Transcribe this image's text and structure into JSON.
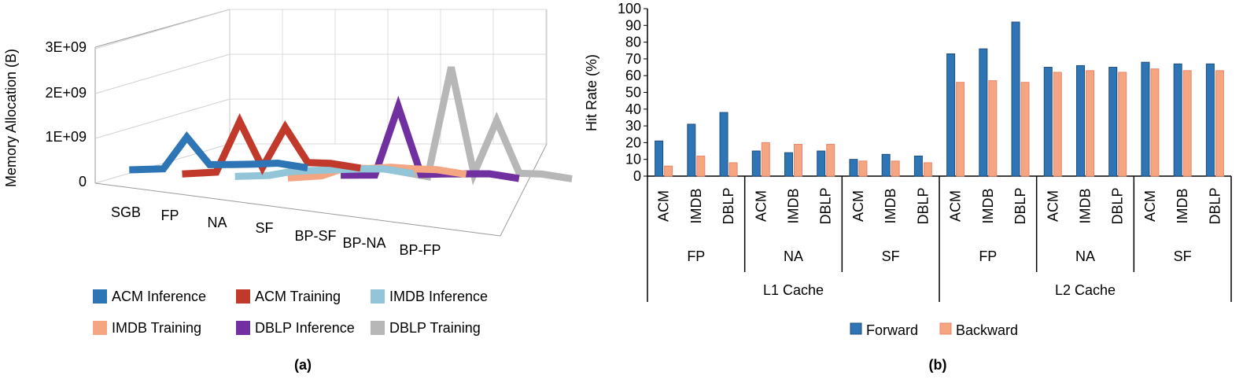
{
  "panels": {
    "left_caption": "(a)",
    "right_caption": "(b)"
  },
  "chart_data": [
    {
      "type": "line",
      "subtype": "3d-line",
      "title": "",
      "xlabel": "",
      "ylabel": "Memory Allocation (B)",
      "categories": [
        "SGB",
        "FP",
        "NA",
        "SF",
        "BP-SF",
        "BP-NA",
        "BP-FP"
      ],
      "y_tick_labels": [
        "0",
        "1E+09",
        "2E+09",
        "3E+09"
      ],
      "ylim": [
        0,
        3000000000
      ],
      "grid": true,
      "legend_position": "bottom",
      "series": [
        {
          "name": "ACM Inference",
          "color": "#2e75b6",
          "values": [
            80000000,
            50000000,
            750000000,
            80000000,
            50000000,
            30000000,
            20000000
          ]
        },
        {
          "name": "ACM Training",
          "color": "#c0392b",
          "values": [
            70000000,
            60000000,
            1200000000,
            100000000,
            1000000000,
            150000000,
            100000000
          ]
        },
        {
          "name": "IMDB Inference",
          "color": "#92c5d7",
          "values": [
            100000000,
            70000000,
            130000000,
            120000000,
            110000000,
            90000000,
            60000000
          ]
        },
        {
          "name": "IMDB Training",
          "color": "#f4a582",
          "values": [
            150000000,
            150000000,
            300000000,
            250000000,
            250000000,
            180000000,
            130000000
          ]
        },
        {
          "name": "DBLP Inference",
          "color": "#7030a0",
          "values": [
            300000000,
            250000000,
            1800000000,
            200000000,
            180000000,
            150000000,
            120000000
          ]
        },
        {
          "name": "DBLP Training",
          "color": "#b7b7b7",
          "values": [
            500000000,
            300000000,
            2800000000,
            300000000,
            1500000000,
            250000000,
            200000000
          ]
        }
      ]
    },
    {
      "type": "bar",
      "title": "",
      "xlabel": "",
      "ylabel": "Hit Rate (%)",
      "ylim": [
        0,
        100
      ],
      "y_ticks": [
        0,
        10,
        20,
        30,
        40,
        50,
        60,
        70,
        80,
        90,
        100
      ],
      "grid": false,
      "legend_position": "bottom",
      "categories": [
        "ACM",
        "IMDB",
        "DBLP",
        "ACM",
        "IMDB",
        "DBLP",
        "ACM",
        "IMDB",
        "DBLP",
        "ACM",
        "IMDB",
        "DBLP",
        "ACM",
        "IMDB",
        "DBLP",
        "ACM",
        "IMDB",
        "DBLP"
      ],
      "subgroups": [
        "FP",
        "NA",
        "SF",
        "FP",
        "NA",
        "SF"
      ],
      "groups": [
        "L1 Cache",
        "L2 Cache"
      ],
      "series": [
        {
          "name": "Forward",
          "color": "#2e75b6",
          "values": [
            21,
            31,
            38,
            15,
            14,
            15,
            10,
            13,
            12,
            73,
            76,
            92,
            65,
            66,
            65,
            68,
            67,
            67
          ]
        },
        {
          "name": "Backward",
          "color": "#f4a582",
          "values": [
            6,
            12,
            8,
            20,
            19,
            19,
            9,
            9,
            8,
            56,
            57,
            56,
            62,
            63,
            62,
            64,
            63,
            63
          ]
        }
      ]
    }
  ]
}
